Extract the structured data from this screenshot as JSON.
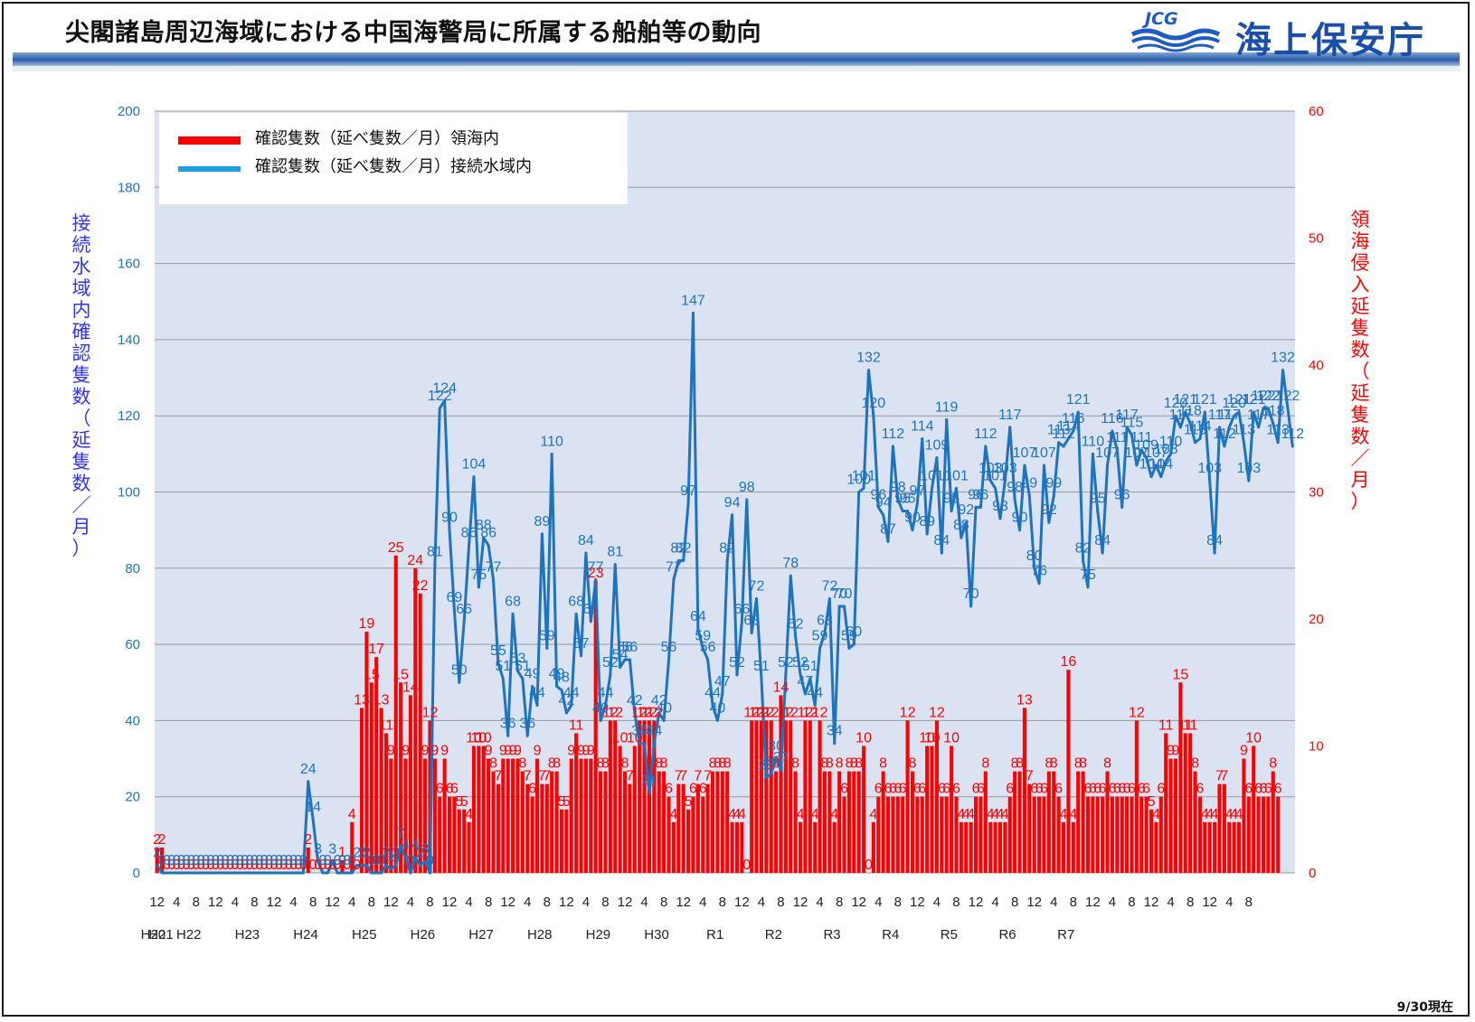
{
  "header": {
    "title": "尖閣諸島周辺海域における中国海警局に所属する船舶等の動向",
    "logo_mark": "JCG",
    "logo_name": "海上保安庁"
  },
  "footer": {
    "as_of": "9/30現在"
  },
  "colors": {
    "blue": "#1e73be",
    "red": "#ff0000",
    "plot_bg": "#dbe3f2",
    "axis_left_title": "#3333ff",
    "axis_right_title": "#ff0000"
  },
  "chart_data": {
    "type": "bar+line",
    "ylabel_left": "接続水域内確認隻数（延隻数／月）",
    "ylabel_right": "領海侵入延隻数（延隻数／月）",
    "ylim_left": [
      0,
      200
    ],
    "ylim_right": [
      0,
      60
    ],
    "yticks_left": [
      "0",
      "20",
      "40",
      "60",
      "80",
      "100",
      "120",
      "140",
      "160",
      "180",
      "200"
    ],
    "yticks_right": [
      "0",
      "10",
      "20",
      "30",
      "40",
      "50",
      "60"
    ],
    "grid": true,
    "legend": {
      "placement": "top-left",
      "entries": [
        "確認隻数（延べ隻数／月）領海内",
        "確認隻数（延べ隻数／月）接続水域内"
      ]
    },
    "x_month_ticks": [
      "12",
      "4",
      "8",
      "12",
      "4",
      "8",
      "12",
      "4",
      "8",
      "12",
      "4",
      "8",
      "12",
      "4",
      "8",
      "12",
      "4",
      "8",
      "12",
      "4",
      "8",
      "12",
      "4",
      "8",
      "12",
      "4",
      "8",
      "12",
      "4",
      "8",
      "12",
      "4",
      "8",
      "12",
      "4",
      "8",
      "12",
      "4",
      "8",
      "12",
      "4",
      "8",
      "12",
      "4",
      "8",
      "12",
      "4",
      "8",
      "12",
      "4",
      "8",
      "12",
      "4",
      "8",
      "12",
      "4",
      "8"
    ],
    "x_year_labels": [
      "H20",
      "H21",
      "H22",
      "H23",
      "H24",
      "H25",
      "H26",
      "H27",
      "H28",
      "H29",
      "H30",
      "R1",
      "R2",
      "R3",
      "R4",
      "R5",
      "R6",
      "R7"
    ],
    "series": [
      {
        "name": "確認隻数（延べ隻数／月）領海内",
        "axis": "right",
        "type": "bar",
        "values": [
          2,
          2,
          0,
          0,
          0,
          0,
          0,
          0,
          0,
          0,
          0,
          0,
          0,
          0,
          0,
          0,
          0,
          0,
          0,
          0,
          0,
          0,
          0,
          0,
          0,
          0,
          0,
          0,
          0,
          0,
          0,
          2,
          0,
          0,
          0,
          0,
          0,
          0,
          1,
          0,
          4,
          0,
          13,
          19,
          15,
          17,
          13,
          11,
          9,
          25,
          15,
          9,
          14,
          24,
          22,
          9,
          12,
          9,
          6,
          9,
          6,
          6,
          5,
          5,
          4,
          10,
          10,
          10,
          9,
          8,
          7,
          9,
          9,
          9,
          9,
          8,
          7,
          6,
          9,
          7,
          7,
          8,
          8,
          5,
          5,
          9,
          11,
          9,
          9,
          9,
          23,
          8,
          8,
          12,
          12,
          10,
          8,
          7,
          10,
          12,
          12,
          12,
          12,
          8,
          8,
          6,
          4,
          7,
          7,
          5,
          6,
          7,
          6,
          7,
          8,
          8,
          8,
          8,
          4,
          4,
          4,
          0,
          12,
          12,
          12,
          12,
          12,
          8,
          14,
          12,
          12,
          8,
          4,
          12,
          12,
          4,
          12,
          8,
          8,
          4,
          8,
          6,
          8,
          8,
          8,
          10,
          0,
          4,
          6,
          8,
          6,
          6,
          6,
          6,
          12,
          8,
          6,
          6,
          10,
          10,
          12,
          6,
          6,
          10,
          6,
          4,
          4,
          4,
          6,
          6,
          8,
          4,
          4,
          4,
          4,
          6,
          8,
          8,
          13,
          7,
          6,
          6,
          6,
          8,
          8,
          6,
          4,
          16,
          4,
          8,
          8,
          6,
          6,
          6,
          6,
          8,
          6,
          6,
          6,
          6,
          6,
          12,
          6,
          6,
          5,
          4,
          6,
          11,
          9,
          9,
          15,
          11,
          11,
          8,
          6,
          4,
          4,
          4,
          7,
          7,
          4,
          4,
          4,
          9,
          6,
          10,
          6,
          6,
          6,
          8,
          6
        ]
      },
      {
        "name": "確認隻数（延べ隻数／月）接続水域内",
        "axis": "left",
        "type": "line",
        "values": [
          2,
          0,
          0,
          0,
          0,
          0,
          0,
          0,
          0,
          0,
          0,
          0,
          0,
          0,
          0,
          0,
          0,
          0,
          0,
          0,
          0,
          0,
          0,
          0,
          0,
          0,
          0,
          0,
          0,
          0,
          0,
          24,
          14,
          3,
          0,
          0,
          3,
          0,
          0,
          0,
          0,
          2,
          2,
          2,
          0,
          0,
          0,
          2,
          1,
          2,
          7,
          4,
          0,
          4,
          2,
          3,
          0,
          81,
          122,
          124,
          90,
          69,
          50,
          66,
          86,
          104,
          75,
          88,
          86,
          77,
          55,
          51,
          36,
          68,
          53,
          51,
          36,
          49,
          44,
          89,
          59,
          110,
          49,
          48,
          42,
          44,
          68,
          57,
          84,
          66,
          77,
          40,
          44,
          52,
          81,
          54,
          56,
          56,
          42,
          34,
          34,
          21,
          34,
          42,
          40,
          56,
          77,
          82,
          82,
          97,
          147,
          64,
          59,
          56,
          44,
          40,
          47,
          82,
          94,
          52,
          66,
          98,
          63,
          72,
          51,
          25,
          26,
          30,
          27,
          52,
          78,
          62,
          52,
          47,
          51,
          44,
          59,
          63,
          72,
          34,
          70,
          70,
          59,
          60,
          100,
          101,
          132,
          120,
          96,
          94,
          87,
          112,
          98,
          95,
          95,
          90,
          97,
          114,
          89,
          101,
          109,
          84,
          119,
          95,
          101,
          88,
          92,
          70,
          96,
          96,
          112,
          103,
          101,
          93,
          103,
          117,
          98,
          90,
          107,
          99,
          80,
          76,
          107,
          92,
          99,
          113,
          112,
          114,
          116,
          121,
          82,
          75,
          110,
          95,
          84,
          107,
          116,
          111,
          96,
          117,
          115,
          107,
          111,
          109,
          104,
          107,
          104,
          108,
          110,
          120,
          117,
          121,
          118,
          113,
          114,
          121,
          103,
          84,
          117,
          112,
          117,
          120,
          121,
          113,
          103,
          121,
          117,
          122,
          122,
          118,
          113,
          132,
          122,
          112
        ]
      }
    ]
  }
}
